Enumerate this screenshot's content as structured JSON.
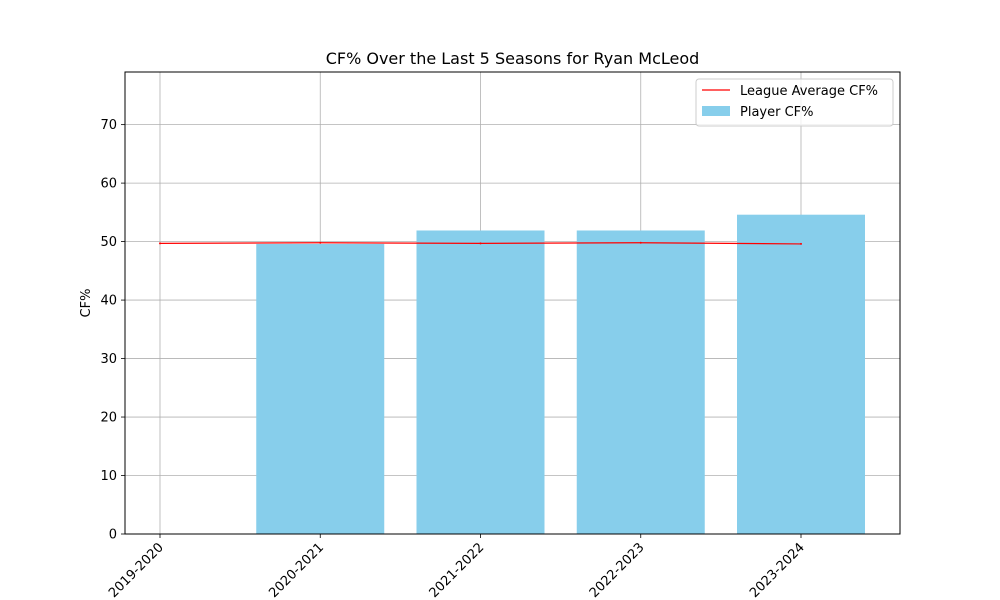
{
  "chart_data": {
    "type": "bar",
    "title": "CF% Over the Last 5 Seasons for Ryan McLeod",
    "xlabel": "",
    "ylabel": "CF%",
    "categories": [
      "2019-2020",
      "2020-2021",
      "2021-2022",
      "2022-2023",
      "2023-2024"
    ],
    "series": [
      {
        "name": "Player CF%",
        "type": "bar",
        "color": "#87CEEB",
        "values": [
          0,
          49.6,
          51.9,
          51.9,
          54.6
        ]
      },
      {
        "name": "League Average CF%",
        "type": "line",
        "color": "#ff0000",
        "values": [
          49.7,
          49.8,
          49.7,
          49.8,
          49.6
        ]
      }
    ],
    "ylim": [
      0,
      79
    ],
    "yticks": [
      0,
      10,
      20,
      30,
      40,
      50,
      60,
      70
    ],
    "grid": true,
    "legend": "top-right"
  }
}
